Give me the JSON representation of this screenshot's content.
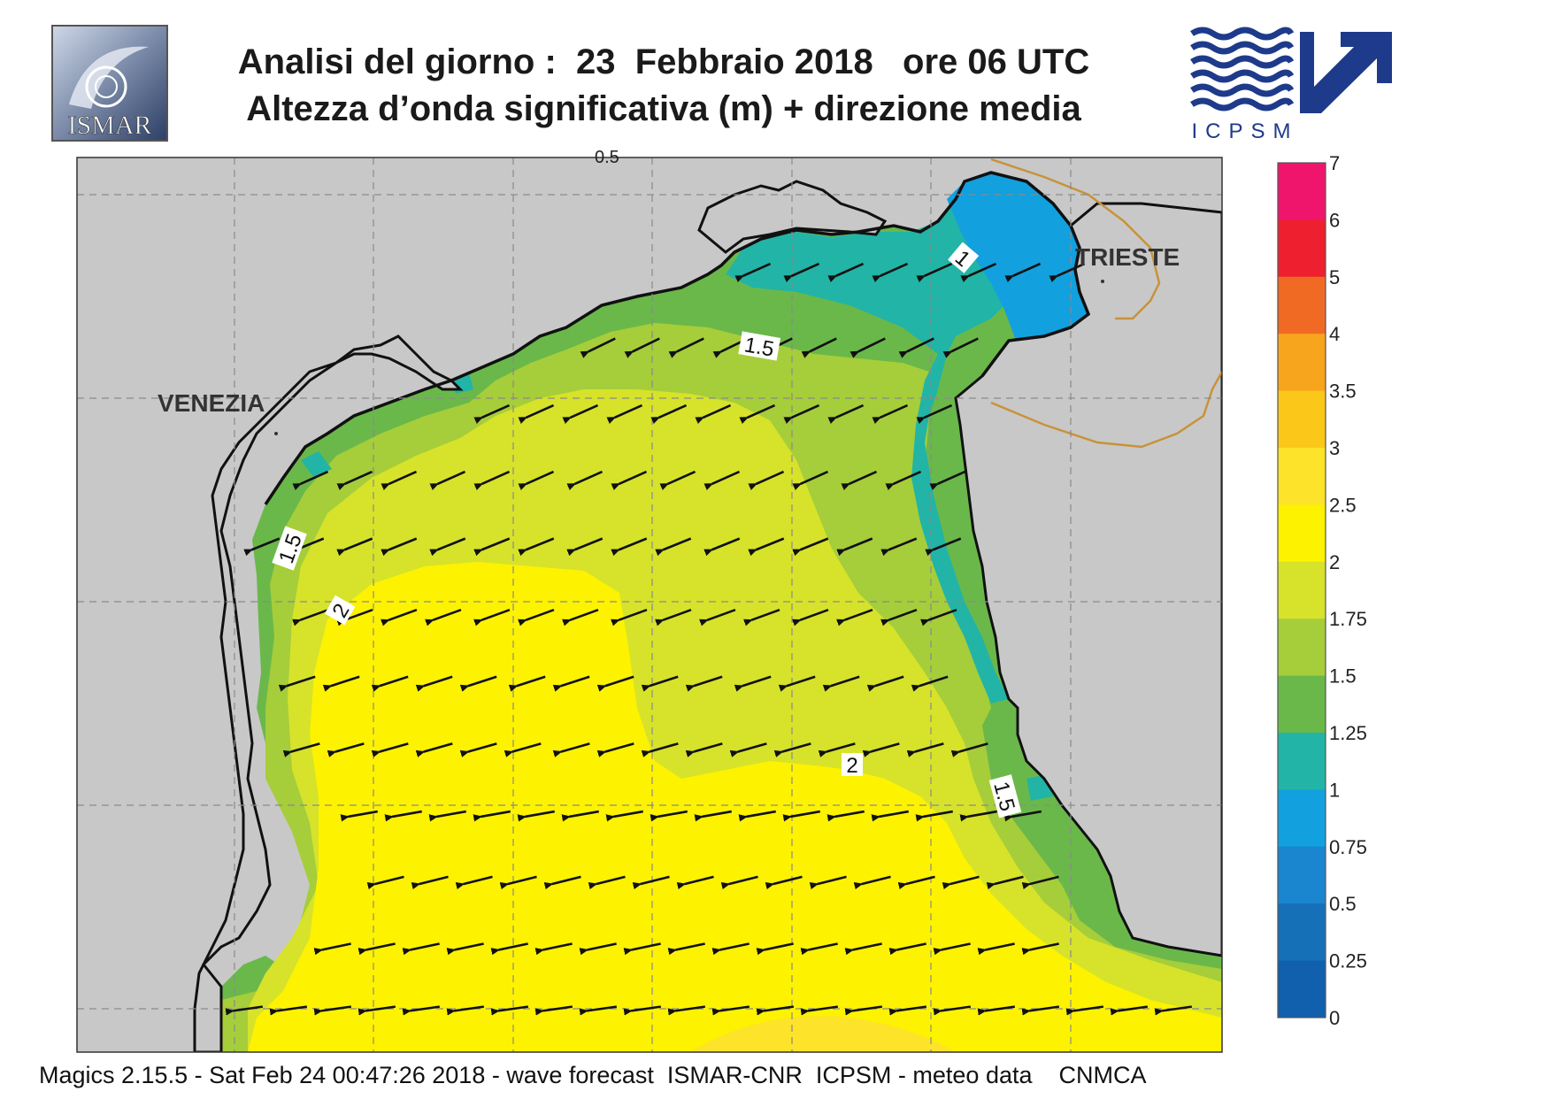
{
  "header": {
    "title_line1": "Analisi del giorno :  23  Febbraio 2018   ore 06 UTC",
    "title_line2": "Altezza d’onda significativa (m) + direzione media"
  },
  "logos": {
    "left": "ISMAR",
    "right": "ICPSM"
  },
  "map": {
    "cities": [
      {
        "name": "VENEZIA"
      },
      {
        "name": "TRIESTE"
      }
    ],
    "contour_labels": [
      "1",
      "1.5",
      "1.5",
      "2",
      "2",
      "1.5"
    ],
    "stray_label": "0.5",
    "mean_direction": "towards south-west",
    "colors": {
      "land": "#c8c8c8",
      "coast": "#111111",
      "border": "#c8923a",
      "grid": "#8a8a8a"
    }
  },
  "legend": {
    "levels": [
      "7",
      "6",
      "5",
      "4",
      "3.5",
      "3",
      "2.5",
      "2",
      "1.75",
      "1.5",
      "1.25",
      "1",
      "0.75",
      "0.5",
      "0.25",
      "0"
    ],
    "colors": [
      "#f0156c",
      "#ee2030",
      "#f06a24",
      "#f7a51d",
      "#fbc81a",
      "#fde32a",
      "#fdf200",
      "#d6e32a",
      "#a6cd3a",
      "#6ab84a",
      "#22b4a6",
      "#12a0de",
      "#1a86cf",
      "#1570b8",
      "#1060ad"
    ]
  },
  "footer": {
    "text": "Magics 2.15.5 - Sat Feb 24 00:47:26 2018 - wave forecast  ISMAR-CNR  ICPSM - meteo data    CNMCA"
  }
}
